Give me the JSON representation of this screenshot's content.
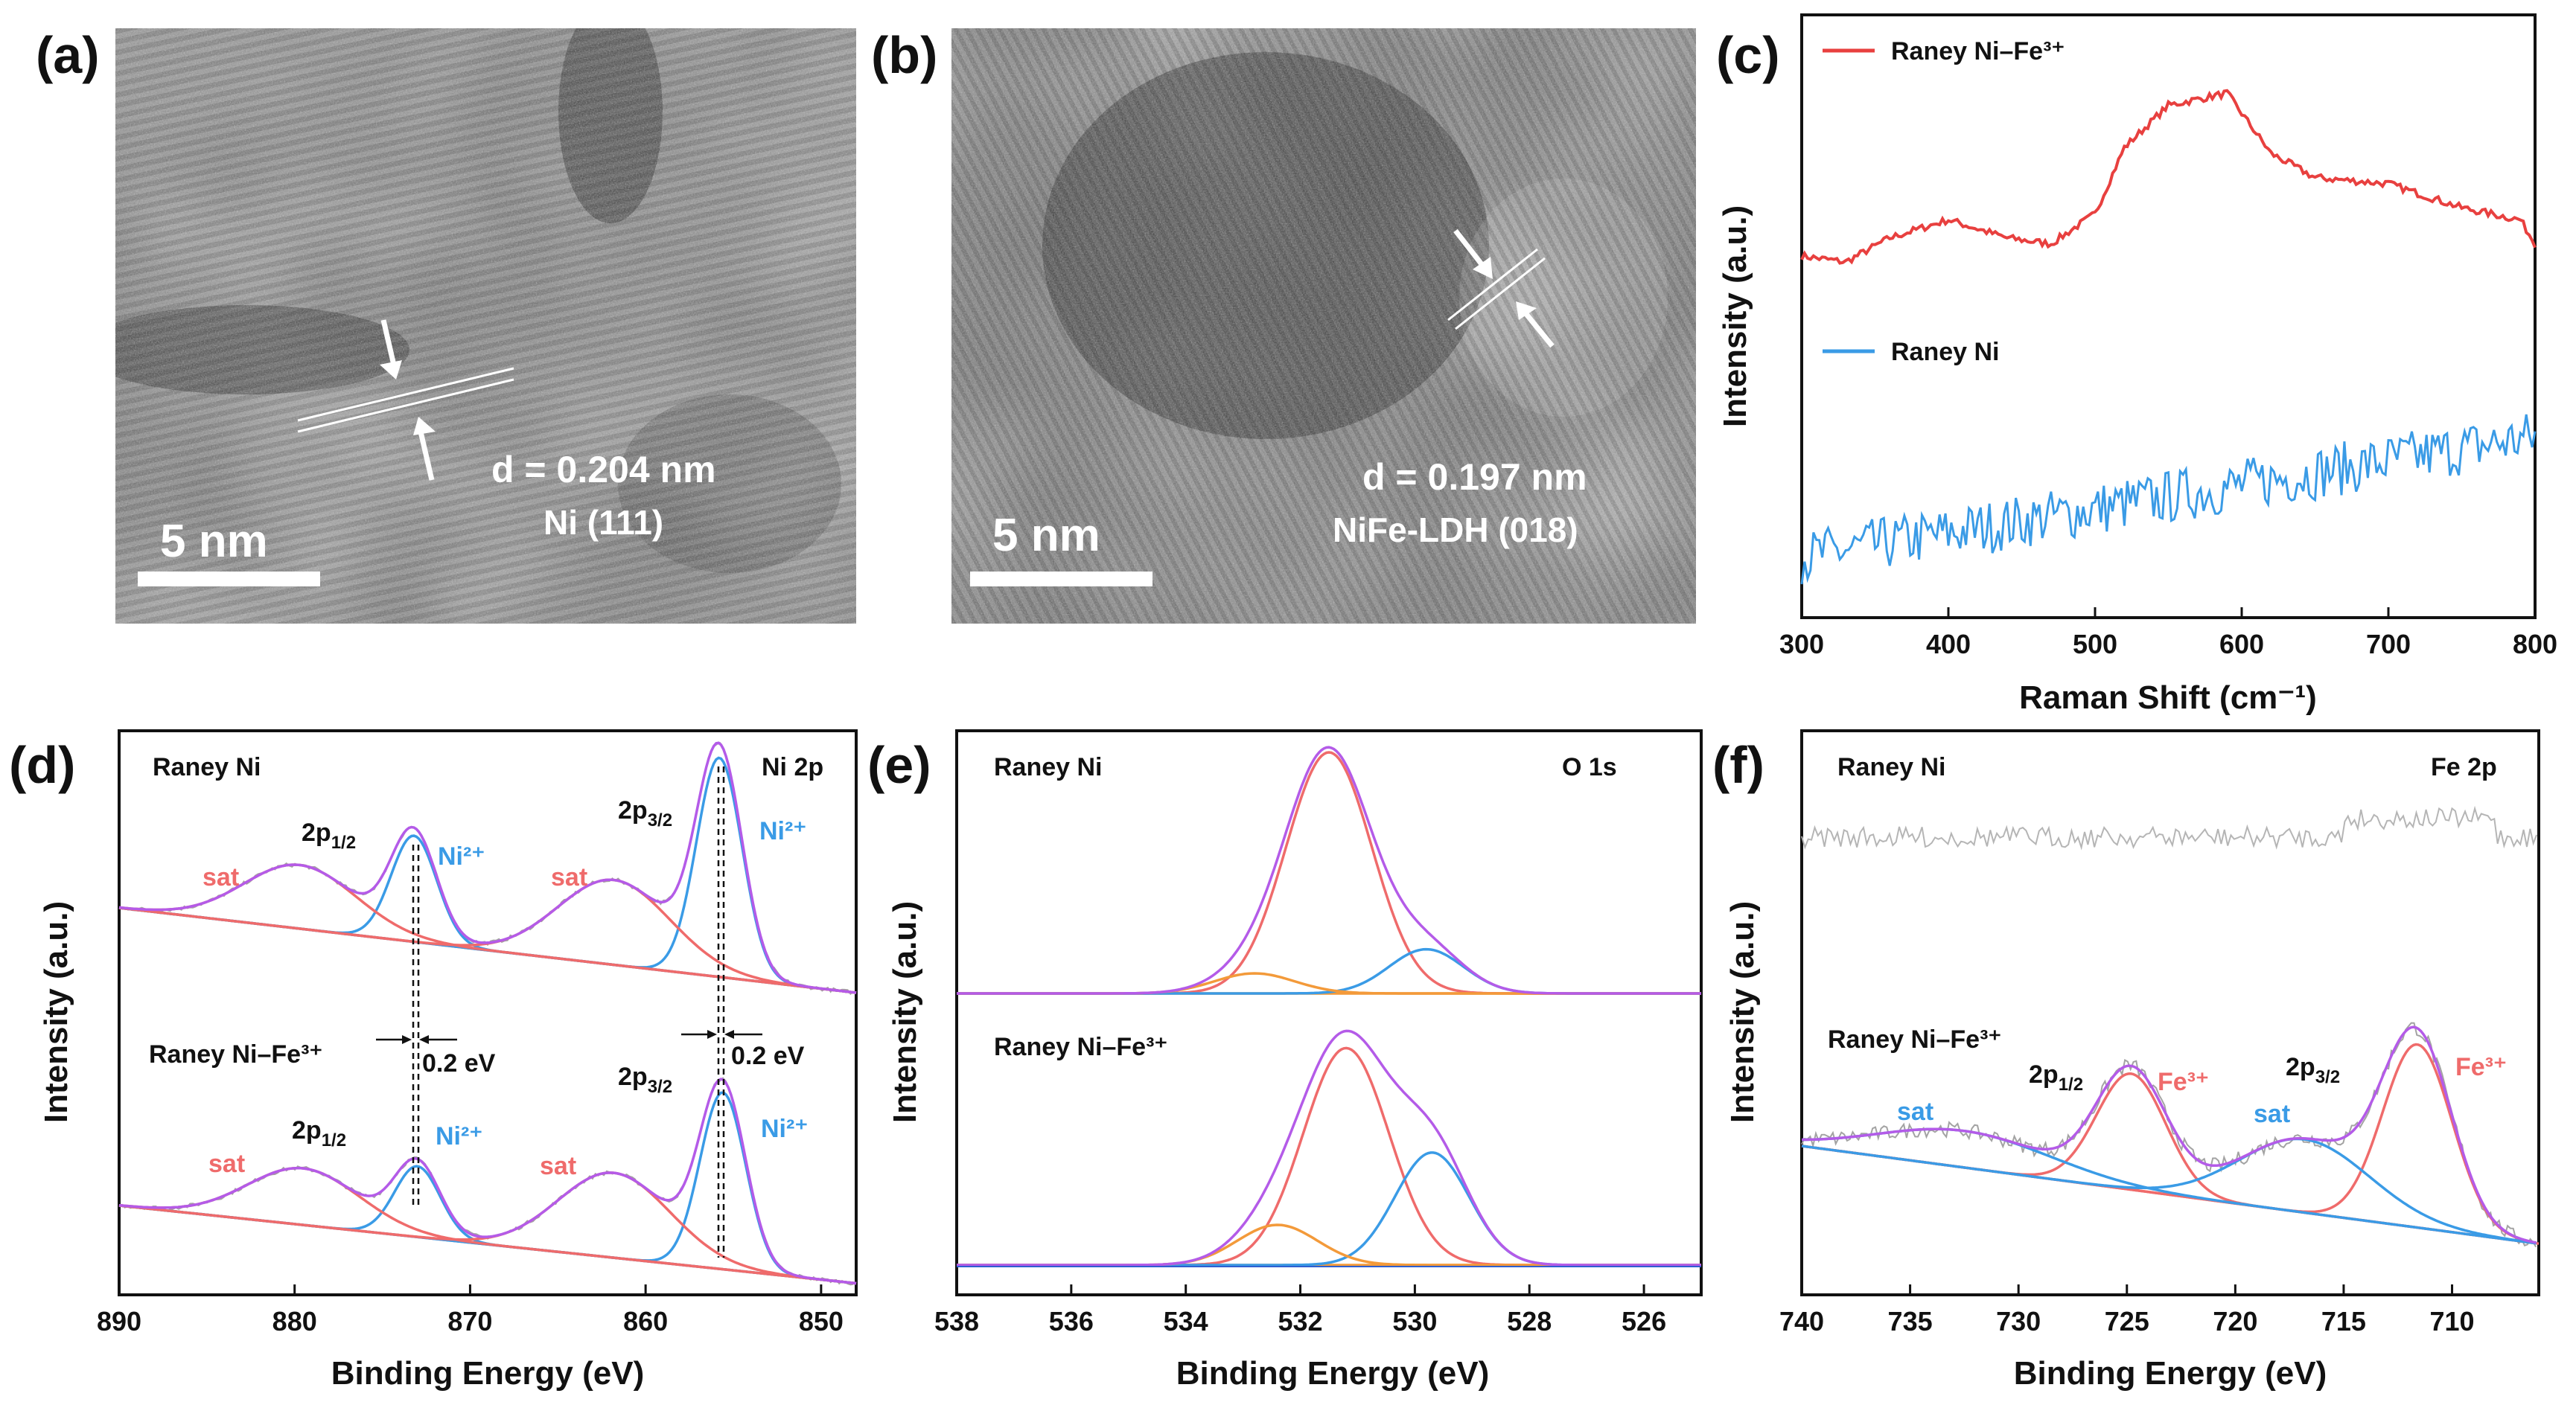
{
  "panels": {
    "a": {
      "letter": "(a)",
      "d_spacing": "d = 0.204 nm",
      "plane": "Ni (111)",
      "scale_bar": "5 nm"
    },
    "b": {
      "letter": "(b)",
      "d_spacing": "d = 0.197 nm",
      "plane": "NiFe-LDH (018)",
      "scale_bar": "5 nm"
    }
  },
  "colors": {
    "red": "#e8403f",
    "blue": "#3a9be6",
    "purple": "#b45be8",
    "salmon": "#ef6b6b",
    "gray": "#9c9c9c",
    "orange": "#f39a3a"
  },
  "chart_data": [
    {
      "id": "c",
      "letter": "(c)",
      "type": "line",
      "xlabel": "Raman Shift (cm⁻¹)",
      "ylabel": "Intensity (a.u.)",
      "xlim": [
        300,
        800
      ],
      "xticks": [
        "300",
        "400",
        "500",
        "600",
        "700",
        "800"
      ],
      "series": [
        {
          "name": "Raney Ni–Fe³⁺",
          "color": "#e8403f",
          "x": [
            300,
            330,
            360,
            400,
            440,
            470,
            500,
            520,
            550,
            590,
            620,
            650,
            700,
            750,
            790,
            800
          ],
          "y": [
            6.0,
            5.9,
            6.3,
            6.6,
            6.3,
            6.2,
            6.7,
            7.8,
            8.5,
            8.7,
            7.7,
            7.3,
            7.2,
            6.8,
            6.6,
            6.2
          ]
        },
        {
          "name": "Raney Ni",
          "color": "#3a9be6",
          "x": [
            300,
            350,
            400,
            450,
            500,
            550,
            600,
            650,
            700,
            750,
            800
          ],
          "y": [
            1.0,
            1.2,
            1.4,
            1.6,
            1.8,
            2.0,
            2.2,
            2.4,
            2.6,
            2.8,
            3.0
          ]
        }
      ]
    },
    {
      "id": "d",
      "letter": "(d)",
      "type": "line",
      "title": "Ni 2p",
      "xlabel": "Binding Energy (eV)",
      "ylabel": "Intensity (a.u.)",
      "xlim": [
        890,
        848
      ],
      "xticks": [
        "890",
        "880",
        "870",
        "860",
        "850"
      ],
      "sample_labels": [
        "Raney Ni",
        "Raney Ni–Fe³⁺"
      ],
      "peak_labels": [
        "2p1/2",
        "2p3/2",
        "sat",
        "Ni²⁺"
      ],
      "shift_label": "0.2 eV",
      "peaks": [
        {
          "sample": "Raney Ni",
          "center": 855.8,
          "amplitude": 3.1,
          "label": "Ni²⁺",
          "component": "main"
        },
        {
          "sample": "Raney Ni",
          "center": 873.2,
          "amplitude": 1.5,
          "label": "Ni²⁺",
          "component": "main"
        },
        {
          "sample": "Raney Ni",
          "center": 861.8,
          "amplitude": 1.2,
          "label": "sat",
          "component": "satellite"
        },
        {
          "sample": "Raney Ni",
          "center": 879.7,
          "amplitude": 0.9,
          "label": "sat",
          "component": "satellite"
        },
        {
          "sample": "Raney Ni–Fe³⁺",
          "center": 855.6,
          "amplitude": 2.5,
          "label": "Ni²⁺",
          "component": "main"
        },
        {
          "sample": "Raney Ni–Fe³⁺",
          "center": 873.0,
          "amplitude": 1.0,
          "label": "Ni²⁺",
          "component": "main"
        },
        {
          "sample": "Raney Ni–Fe³⁺",
          "center": 861.8,
          "amplitude": 1.2,
          "label": "sat",
          "component": "satellite"
        },
        {
          "sample": "Raney Ni–Fe³⁺",
          "center": 879.5,
          "amplitude": 0.8,
          "label": "sat",
          "component": "satellite"
        }
      ]
    },
    {
      "id": "e",
      "letter": "(e)",
      "type": "line",
      "title": "O 1s",
      "xlabel": "Binding Energy (eV)",
      "ylabel": "Intensity (a.u.)",
      "xlim": [
        538,
        525
      ],
      "xticks": [
        "538",
        "536",
        "534",
        "532",
        "530",
        "528",
        "526"
      ],
      "sample_labels": [
        "Raney Ni",
        "Raney Ni–Fe³⁺"
      ],
      "peaks": [
        {
          "sample": "Raney Ni",
          "center": 531.5,
          "amplitude": 6.0,
          "color": "#ef6b6b"
        },
        {
          "sample": "Raney Ni",
          "center": 529.8,
          "amplitude": 1.1,
          "color": "#3a9be6"
        },
        {
          "sample": "Raney Ni",
          "center": 532.8,
          "amplitude": 0.5,
          "color": "#f39a3a"
        },
        {
          "sample": "Raney Ni–Fe³⁺",
          "center": 531.2,
          "amplitude": 5.4,
          "color": "#ef6b6b"
        },
        {
          "sample": "Raney Ni–Fe³⁺",
          "center": 529.7,
          "amplitude": 2.8,
          "color": "#3a9be6"
        },
        {
          "sample": "Raney Ni–Fe³⁺",
          "center": 532.4,
          "amplitude": 1.0,
          "color": "#f39a3a"
        }
      ]
    },
    {
      "id": "f",
      "letter": "(f)",
      "type": "line",
      "title": "Fe 2p",
      "xlabel": "Binding Energy (eV)",
      "ylabel": "Intensity (a.u.)",
      "xlim": [
        740,
        706
      ],
      "xticks": [
        "740",
        "735",
        "730",
        "725",
        "720",
        "715",
        "710"
      ],
      "sample_labels": [
        "Raney Ni",
        "Raney Ni–Fe³⁺"
      ],
      "peak_labels": [
        "2p1/2",
        "2p3/2",
        "sat",
        "Fe³⁺"
      ],
      "peaks": [
        {
          "sample": "Raney Ni–Fe³⁺",
          "center": 711.6,
          "amplitude": 3.0,
          "label": "Fe³⁺"
        },
        {
          "sample": "Raney Ni–Fe³⁺",
          "center": 724.8,
          "amplitude": 1.9,
          "label": "Fe³⁺"
        },
        {
          "sample": "Raney Ni–Fe³⁺",
          "center": 716.8,
          "amplitude": 1.2,
          "label": "sat"
        },
        {
          "sample": "Raney Ni–Fe³⁺",
          "center": 732.5,
          "amplitude": 0.6,
          "label": "sat"
        }
      ]
    }
  ]
}
